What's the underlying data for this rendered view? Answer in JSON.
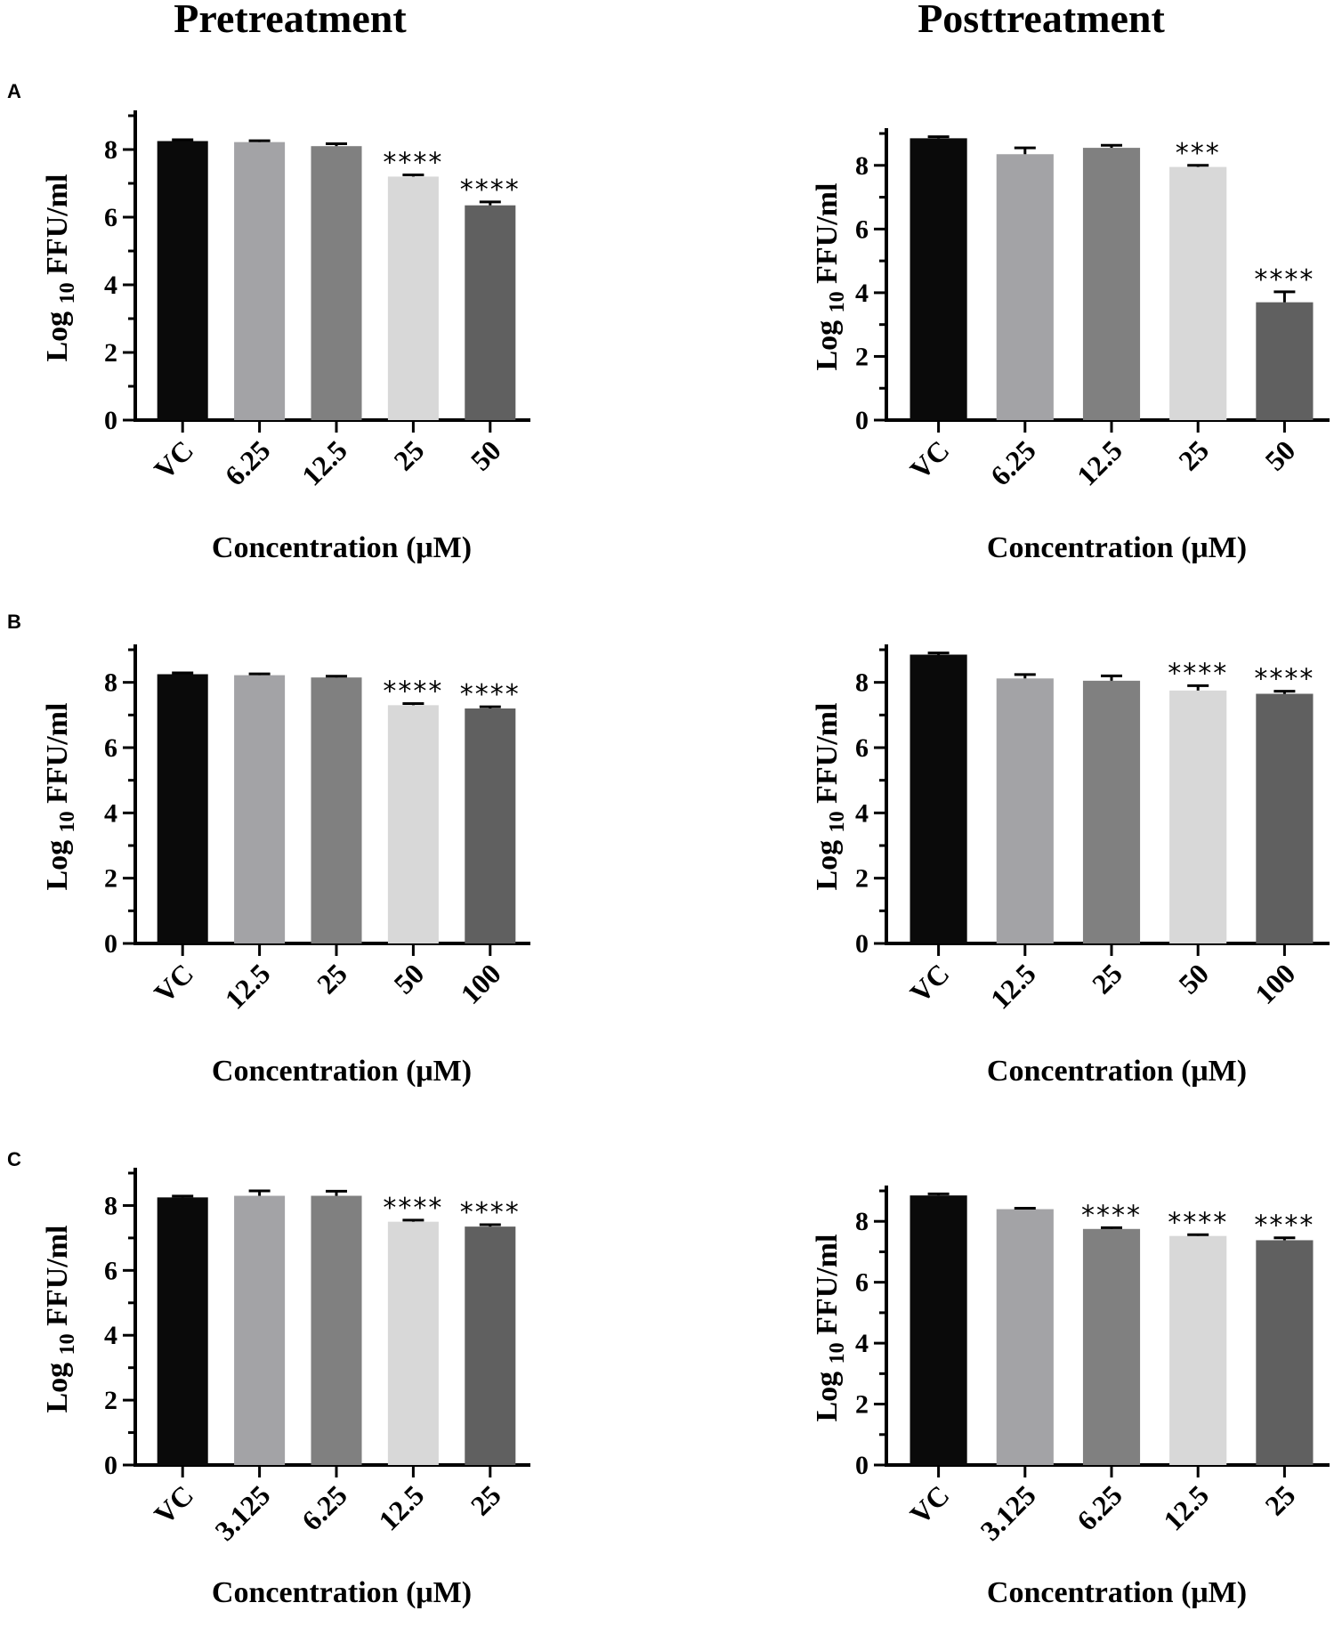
{
  "column_titles": [
    "Pretreatment",
    "Posttreatment"
  ],
  "panel_labels": [
    "A",
    "B",
    "C"
  ],
  "colors": {
    "bar_fills": [
      "#0a0a0a",
      "#a3a3a6",
      "#808080",
      "#d8d8d8",
      "#606060"
    ],
    "axis": "#000000"
  },
  "chart_data": [
    {
      "type": "bar",
      "panel": "A",
      "column": "Pretreatment",
      "categories": [
        "VC",
        "6.25",
        "12.5",
        "25",
        "50"
      ],
      "values": [
        8.25,
        8.22,
        8.1,
        7.2,
        6.35
      ],
      "errors": [
        0.04,
        0.04,
        0.07,
        0.05,
        0.1
      ],
      "annotations": [
        "",
        "",
        "",
        "****",
        "****"
      ],
      "ylabel_main": "Log",
      "ylabel_sub": "10",
      "ylabel_rest": " FFU/ml",
      "xlabel": "Concentration (μM)",
      "ylim": [
        0,
        9
      ],
      "yticks": [
        0,
        2,
        4,
        6,
        8
      ]
    },
    {
      "type": "bar",
      "panel": "A",
      "column": "Posttreatment",
      "categories": [
        "VC",
        "6.25",
        "12.5",
        "25",
        "50"
      ],
      "values": [
        8.85,
        8.35,
        8.55,
        7.95,
        3.7
      ],
      "errors": [
        0.05,
        0.2,
        0.08,
        0.05,
        0.33
      ],
      "annotations": [
        "",
        "",
        "",
        "***",
        "****"
      ],
      "ylabel_main": "Log",
      "ylabel_sub": "10",
      "ylabel_rest": " FFU/ml",
      "xlabel": "Concentration (μM)",
      "ylim": [
        0,
        9
      ],
      "yticks": [
        0,
        2,
        4,
        6,
        8
      ]
    },
    {
      "type": "bar",
      "panel": "B",
      "column": "Pretreatment",
      "categories": [
        "VC",
        "12.5",
        "25",
        "50",
        "100"
      ],
      "values": [
        8.25,
        8.22,
        8.15,
        7.3,
        7.2
      ],
      "errors": [
        0.04,
        0.04,
        0.04,
        0.05,
        0.05
      ],
      "annotations": [
        "",
        "",
        "",
        "****",
        "****"
      ],
      "ylabel_main": "Log",
      "ylabel_sub": "10",
      "ylabel_rest": " FFU/ml",
      "xlabel": "Concentration (μM)",
      "ylim": [
        0,
        9
      ],
      "yticks": [
        0,
        2,
        4,
        6,
        8
      ]
    },
    {
      "type": "bar",
      "panel": "B",
      "column": "Posttreatment",
      "categories": [
        "VC",
        "12.5",
        "25",
        "50",
        "100"
      ],
      "values": [
        8.85,
        8.12,
        8.05,
        7.75,
        7.65
      ],
      "errors": [
        0.05,
        0.12,
        0.15,
        0.15,
        0.08
      ],
      "annotations": [
        "",
        "",
        "",
        "****",
        "****"
      ],
      "ylabel_main": "Log",
      "ylabel_sub": "10",
      "ylabel_rest": " FFU/ml",
      "xlabel": "Concentration (μM)",
      "ylim": [
        0,
        9
      ],
      "yticks": [
        0,
        2,
        4,
        6,
        8
      ]
    },
    {
      "type": "bar",
      "panel": "C",
      "column": "Pretreatment",
      "categories": [
        "VC",
        "3.125",
        "6.25",
        "12.5",
        "25"
      ],
      "values": [
        8.25,
        8.3,
        8.3,
        7.5,
        7.35
      ],
      "errors": [
        0.04,
        0.15,
        0.14,
        0.05,
        0.06
      ],
      "annotations": [
        "",
        "",
        "",
        "****",
        "****"
      ],
      "ylabel_main": "Log",
      "ylabel_sub": "10",
      "ylabel_rest": " FFU/ml",
      "xlabel": "Concentration (μM)",
      "ylim": [
        0,
        9
      ],
      "yticks": [
        0,
        2,
        4,
        6,
        8
      ]
    },
    {
      "type": "bar",
      "panel": "C",
      "column": "Posttreatment",
      "categories": [
        "VC",
        "3.125",
        "6.25",
        "12.5",
        "25"
      ],
      "values": [
        8.85,
        8.4,
        7.75,
        7.52,
        7.38
      ],
      "errors": [
        0.05,
        0.03,
        0.04,
        0.04,
        0.08
      ],
      "annotations": [
        "",
        "",
        "****",
        "****",
        "****"
      ],
      "ylabel_main": "Log",
      "ylabel_sub": "10",
      "ylabel_rest": " FFU/ml",
      "xlabel": "Concentration (μM)",
      "ylim": [
        0,
        9
      ],
      "yticks": [
        0,
        2,
        4,
        6,
        8
      ]
    }
  ]
}
